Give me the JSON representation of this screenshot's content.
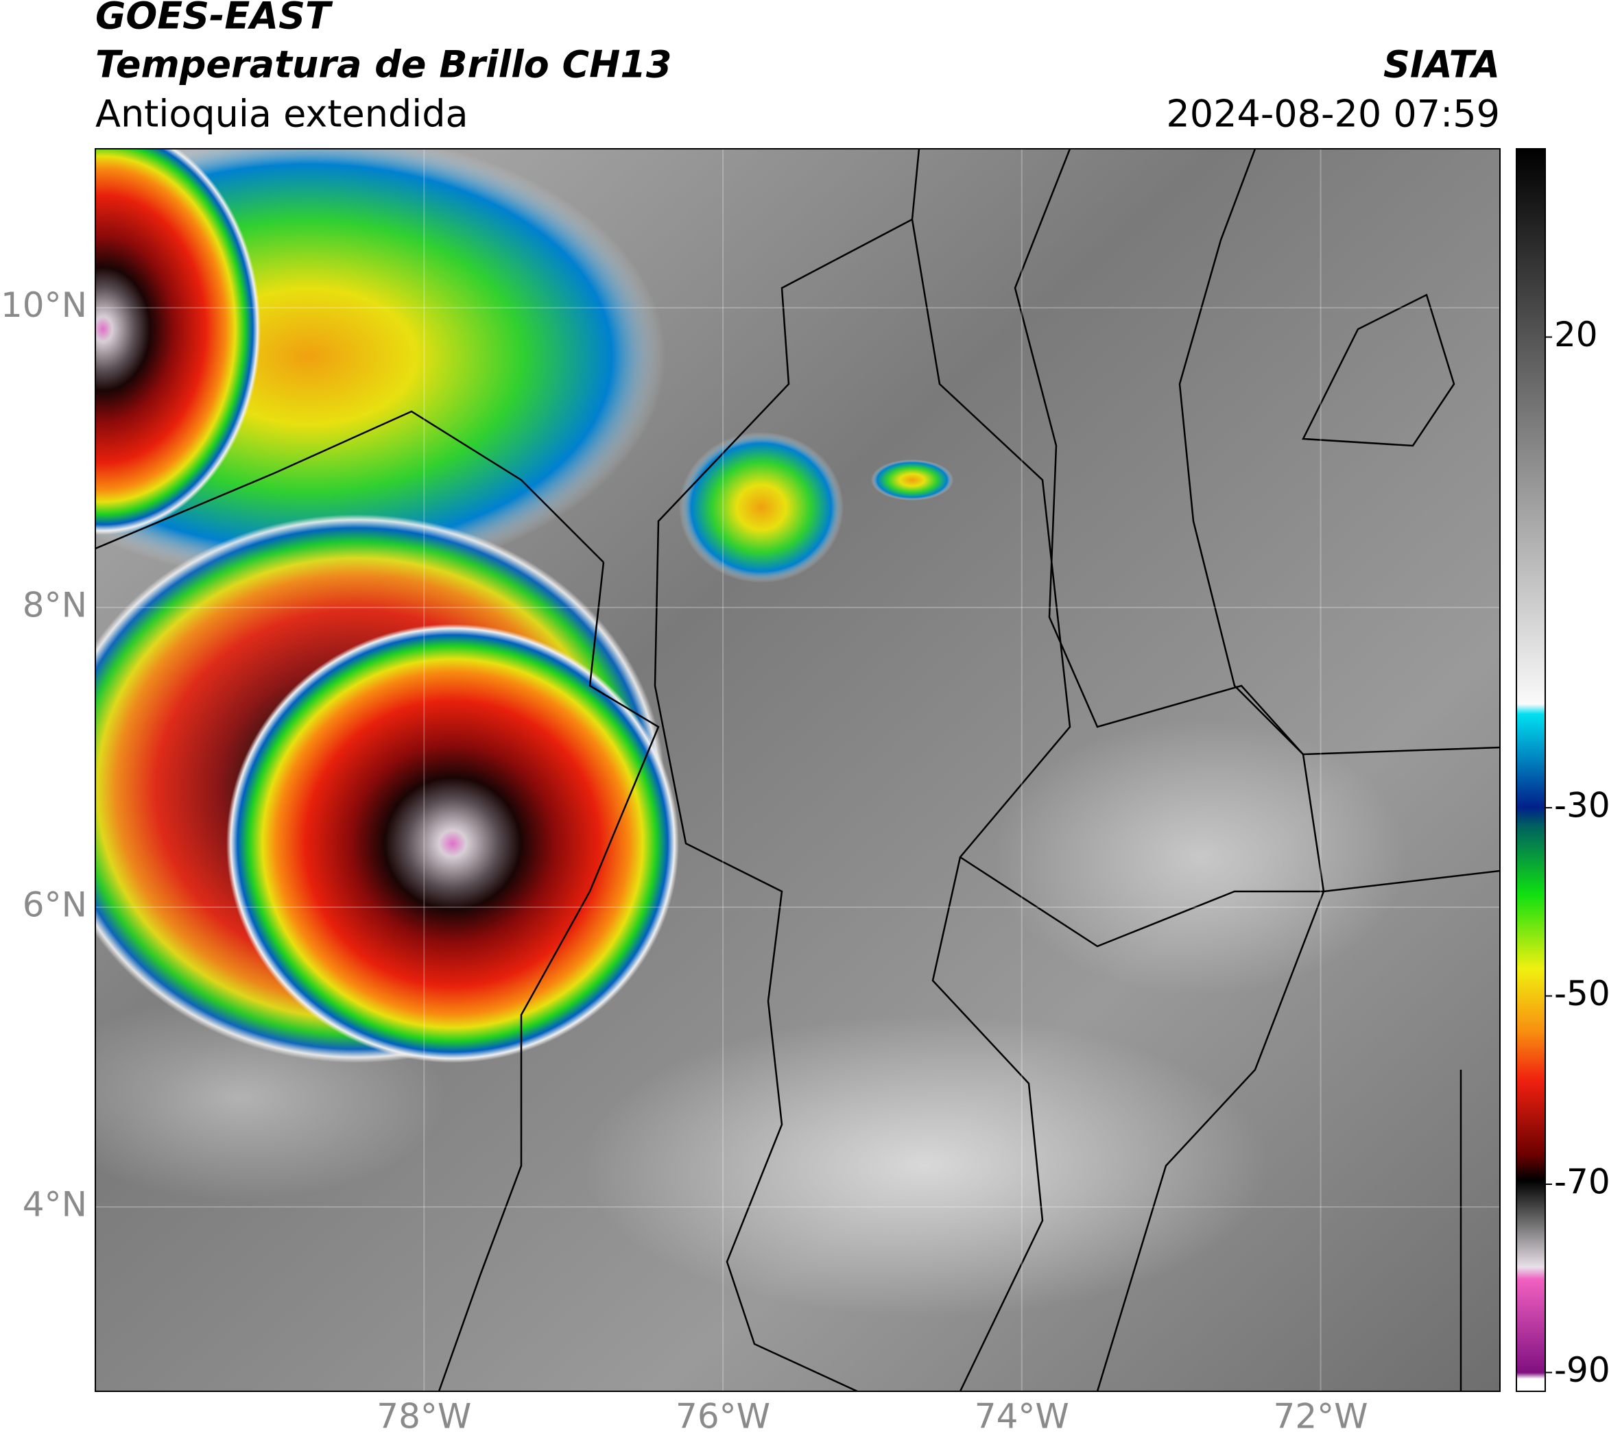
{
  "header": {
    "title": "GOES-EAST",
    "subtitle": "Temperatura de Brillo CH13",
    "region": "Antioquia extendida",
    "source": "SIATA",
    "datetime": "2024-08-20 07:59"
  },
  "map": {
    "xlim": [
      -80.2,
      -70.8
    ],
    "ylim": [
      2.77,
      11.06
    ],
    "xticks": [
      {
        "value": -78,
        "label": "78°W"
      },
      {
        "value": -76,
        "label": "76°W"
      },
      {
        "value": -74,
        "label": "74°W"
      },
      {
        "value": -72,
        "label": "72°W"
      }
    ],
    "yticks": [
      {
        "value": 4,
        "label": "4°N"
      },
      {
        "value": 6,
        "label": "6°N"
      },
      {
        "value": 8,
        "label": "8°N"
      },
      {
        "value": 10,
        "label": "10°N"
      }
    ],
    "grid": true
  },
  "colorbar": {
    "clim": [
      -92,
      40
    ],
    "ticks": [
      20,
      -30,
      -50,
      -70,
      -90
    ]
  }
}
